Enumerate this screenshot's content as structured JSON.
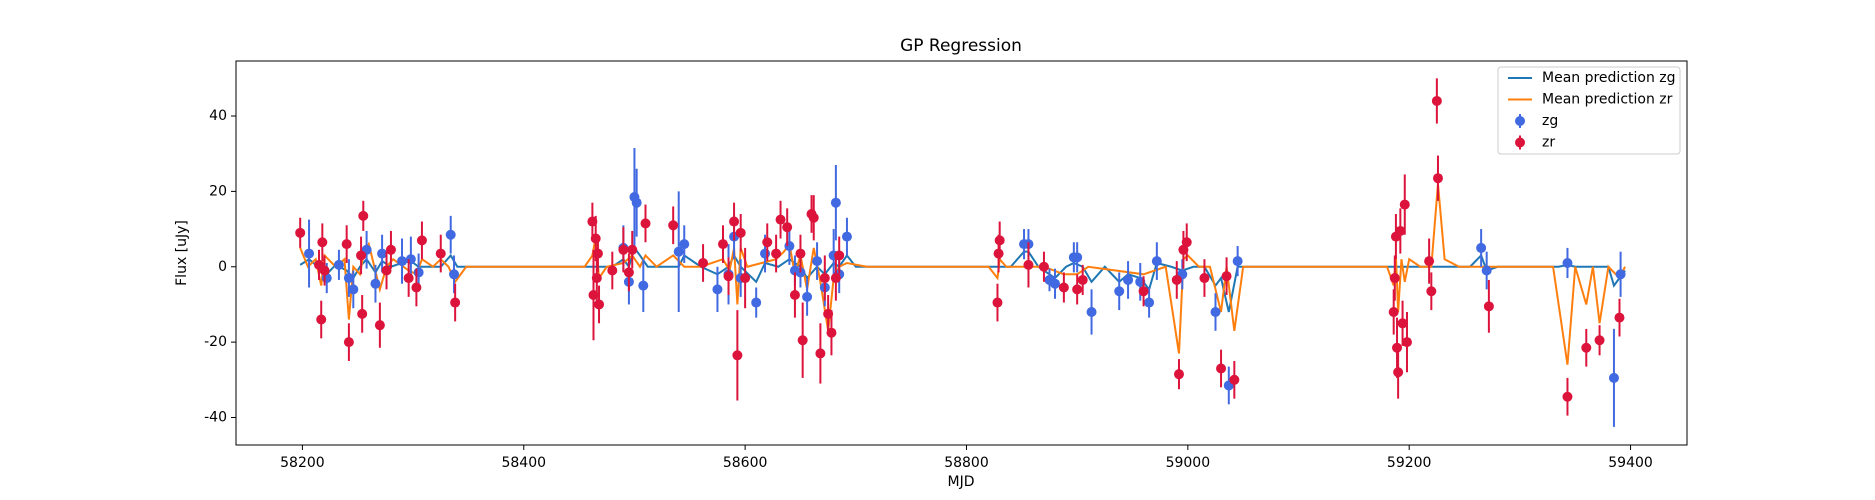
{
  "chart_data": {
    "type": "line",
    "title": "GP Regression",
    "xlabel": "MJD",
    "ylabel": "Flux [uJy]",
    "xlim": [
      58140,
      59451
    ],
    "ylim": [
      -47.3,
      54.6
    ],
    "xticks": [
      58200,
      58400,
      58600,
      58800,
      59000,
      59200,
      59400
    ],
    "yticks": [
      -40,
      -20,
      0,
      20,
      40
    ],
    "legend": "upper right",
    "series": [
      {
        "name": "Mean prediction zg",
        "type": "line",
        "color": "#1f77b4",
        "x": [
          58198,
          58206,
          58214,
          58222,
          58230,
          58240,
          58246,
          58252,
          58258,
          58266,
          58272,
          58280,
          58290,
          58298,
          58305,
          58315,
          58325,
          58334,
          58340,
          58350,
          58480,
          58490,
          58495,
          58500,
          58505,
          58512,
          58520,
          58540,
          58545,
          58560,
          58575,
          58585,
          58590,
          58596,
          58603,
          58610,
          58618,
          58630,
          58640,
          58650,
          58656,
          58665,
          58672,
          58680,
          58685,
          58692,
          58700,
          58710,
          58840,
          58852,
          58856,
          58865,
          58875,
          58880,
          58890,
          58897,
          58905,
          58913,
          58925,
          58938,
          58946,
          58957,
          58965,
          58972,
          58985,
          58995,
          59005,
          59015,
          59025,
          59030,
          59037,
          59045,
          59055,
          59255,
          59265,
          59270,
          59280,
          59335,
          59343,
          59350,
          59380,
          59385,
          59395
        ],
        "values": [
          0.5,
          2,
          0,
          -2,
          0.5,
          -1,
          -3,
          0,
          2,
          -1.5,
          1.5,
          0,
          1,
          1.5,
          0,
          0,
          0,
          3,
          0,
          0,
          0,
          2,
          0,
          5,
          3,
          0,
          0,
          0,
          3,
          0,
          -2,
          0,
          3,
          0,
          -2,
          -4,
          1,
          0,
          2,
          0,
          -3,
          0,
          -2,
          1,
          0,
          3,
          0,
          0,
          0,
          4,
          4,
          0,
          -2,
          -3,
          0,
          1,
          0,
          -4,
          0,
          -4,
          -2,
          -3,
          -6,
          1,
          0,
          -1,
          0,
          0,
          -5,
          -3,
          -12,
          0,
          0,
          0,
          3,
          -1,
          0,
          0,
          0.5,
          0,
          0,
          -5,
          -1
        ]
      },
      {
        "name": "Mean prediction zr",
        "type": "line",
        "color": "#ff7f0e",
        "x": [
          58198,
          58205,
          58212,
          58217,
          58220,
          58230,
          58238,
          58242,
          58246,
          58252,
          58255,
          58260,
          58270,
          58276,
          58282,
          58296,
          58303,
          58308,
          58318,
          58325,
          58332,
          58338,
          58348,
          58455,
          58462,
          58465,
          58468,
          58475,
          58490,
          58498,
          58505,
          58510,
          58520,
          58535,
          58545,
          58560,
          58580,
          58586,
          58590,
          58593,
          58596,
          58602,
          58615,
          58628,
          58635,
          58640,
          58645,
          58650,
          58656,
          58662,
          58668,
          58675,
          58680,
          58685,
          58692,
          58710,
          58820,
          58828,
          58830,
          58836,
          58850,
          58870,
          58888,
          58900,
          58910,
          58960,
          58980,
          58992,
          58996,
          59000,
          59010,
          59020,
          59030,
          59035,
          59042,
          59050,
          59180,
          59186,
          59188,
          59190,
          59193,
          59196,
          59200,
          59210,
          59220,
          59226,
          59232,
          59245,
          59330,
          59343,
          59350,
          59360,
          59366,
          59372,
          59380,
          59390,
          59395
        ],
        "values": [
          5,
          0,
          2,
          -5,
          3,
          0,
          2,
          -14,
          0,
          -2,
          3,
          6,
          -6,
          0,
          2,
          -1,
          -2,
          2,
          0,
          2,
          0,
          -4,
          0,
          0,
          3,
          8,
          -3,
          0,
          1,
          3,
          0,
          3,
          0,
          3,
          0,
          0,
          2,
          -1,
          5,
          -10,
          5,
          0,
          1,
          2,
          4,
          6,
          -2,
          3,
          -6,
          5,
          -4,
          -17,
          -3,
          0,
          1,
          0,
          0,
          -3,
          2,
          0,
          0,
          0,
          -2,
          -2,
          0,
          -2,
          0,
          -23,
          2,
          3,
          0,
          0,
          -12,
          0,
          -17,
          0,
          0,
          -5,
          3,
          -12,
          2,
          -4,
          2,
          0,
          0,
          22,
          2,
          0,
          0,
          -26,
          0,
          -10,
          0,
          -15,
          0,
          -3,
          0
        ]
      },
      {
        "name": "zg",
        "type": "errorbar",
        "color": "#4169e1",
        "x": [
          58206,
          58222,
          58233,
          58242,
          58246,
          58258,
          58266,
          58272,
          58290,
          58298,
          58305,
          58334,
          58337,
          58490,
          58495,
          58500,
          58502,
          58508,
          58540,
          58545,
          58575,
          58585,
          58590,
          58596,
          58610,
          58618,
          58640,
          58645,
          58650,
          58656,
          58665,
          58672,
          58680,
          58682,
          58685,
          58692,
          58852,
          58856,
          58875,
          58880,
          58897,
          58900,
          58913,
          58938,
          58946,
          58957,
          58965,
          58972,
          58995,
          59025,
          59037,
          59045,
          59265,
          59270,
          59343,
          59385,
          59391
        ],
        "values": [
          3.5,
          -3,
          0.5,
          -3,
          -6,
          4.5,
          -4.5,
          3.5,
          1.5,
          2,
          -1.5,
          8.5,
          -2,
          5,
          -4,
          18.5,
          17,
          -5,
          4,
          6,
          -6,
          -2,
          8,
          -3,
          -9.5,
          3.5,
          5.5,
          -1,
          -1.5,
          -8,
          1.5,
          -5.5,
          3,
          17,
          -2,
          8,
          6,
          6,
          -3.5,
          -4.5,
          2.5,
          2.5,
          -12,
          -6.5,
          -3.5,
          -4,
          -9.5,
          1.5,
          -2,
          -12,
          -31.5,
          1.5,
          5,
          -1,
          1,
          -29.5,
          -2
        ],
        "errors": [
          9,
          4,
          4,
          5,
          5,
          5,
          5,
          5,
          6,
          6,
          5,
          5,
          5,
          6,
          6,
          13,
          9,
          7,
          16,
          5,
          6,
          8,
          6,
          5,
          4,
          5,
          5,
          4,
          4,
          5,
          5,
          5,
          7,
          10,
          5,
          5,
          4,
          4,
          3,
          4,
          4,
          4,
          6,
          5,
          5,
          5,
          4,
          5,
          4,
          5,
          5,
          4,
          5,
          5,
          4,
          13,
          6
        ]
      },
      {
        "name": "zr",
        "type": "errorbar",
        "color": "#dc143c",
        "x": [
          58198,
          58215,
          58217,
          58218,
          58220,
          58240,
          58242,
          58253,
          58254,
          58255,
          58270,
          58276,
          58280,
          58296,
          58303,
          58308,
          58325,
          58338,
          58462,
          58463,
          58465,
          58466,
          58467,
          58468,
          58480,
          58490,
          58495,
          58498,
          58510,
          58535,
          58562,
          58580,
          58585,
          58590,
          58593,
          58596,
          58600,
          58620,
          58628,
          58632,
          58638,
          58645,
          58650,
          58652,
          58660,
          58662,
          58668,
          58672,
          58675,
          58678,
          58682,
          58685,
          58828,
          58829,
          58830,
          58856,
          58870,
          58888,
          58900,
          58905,
          58960,
          58990,
          58992,
          58996,
          58999,
          59015,
          59030,
          59035,
          59042,
          59186,
          59187,
          59188,
          59189,
          59190,
          59192,
          59194,
          59196,
          59198,
          59218,
          59220,
          59225,
          59226,
          59272,
          59343,
          59360,
          59372,
          59390
        ],
        "values": [
          9,
          0.5,
          -14,
          6.5,
          -1,
          6,
          -20,
          3,
          -12.5,
          13.5,
          -15.5,
          -1,
          4.5,
          -3,
          -5.5,
          7,
          3.5,
          -9.5,
          12,
          -7.5,
          7.5,
          -3,
          3.5,
          -10,
          -1,
          4.5,
          -1.5,
          4.5,
          11.5,
          11,
          1,
          6,
          -2.5,
          12,
          -23.5,
          9,
          -3,
          6.5,
          3.5,
          12.5,
          10.5,
          -7.5,
          3.5,
          -19.5,
          14,
          13,
          -23,
          -3,
          -12.5,
          -17.5,
          -3,
          3,
          -9.5,
          3.5,
          7,
          0.5,
          0,
          -5.5,
          -6,
          -3.5,
          -6.5,
          -3.5,
          -28.5,
          4.5,
          6.5,
          -3,
          -27,
          -2.5,
          -30,
          -12,
          -3,
          8,
          -21.5,
          -28,
          9.5,
          -15,
          16.5,
          -20,
          1.5,
          -6.5,
          44,
          23.5,
          -10.5,
          -34.5,
          -21.5,
          -19.5,
          -13.5
        ],
        "errors": [
          4,
          4,
          5,
          5,
          4,
          5,
          5,
          5,
          5,
          4,
          6,
          5,
          5,
          5,
          5,
          5,
          5,
          5,
          5,
          12,
          6,
          8,
          5,
          5,
          5,
          6,
          5,
          5,
          5,
          5,
          5,
          5,
          5,
          5,
          12,
          5,
          8,
          5,
          5,
          5,
          5,
          6,
          5,
          10,
          5,
          6,
          8,
          6,
          5,
          6,
          6,
          5,
          5,
          5,
          5,
          6,
          4,
          4,
          4,
          4,
          4,
          5,
          4,
          5,
          5,
          5,
          5,
          5,
          5,
          6,
          6,
          6,
          8,
          7,
          6,
          6,
          8,
          8,
          6,
          5,
          6,
          6,
          7,
          5,
          5,
          4,
          5
        ]
      }
    ]
  }
}
